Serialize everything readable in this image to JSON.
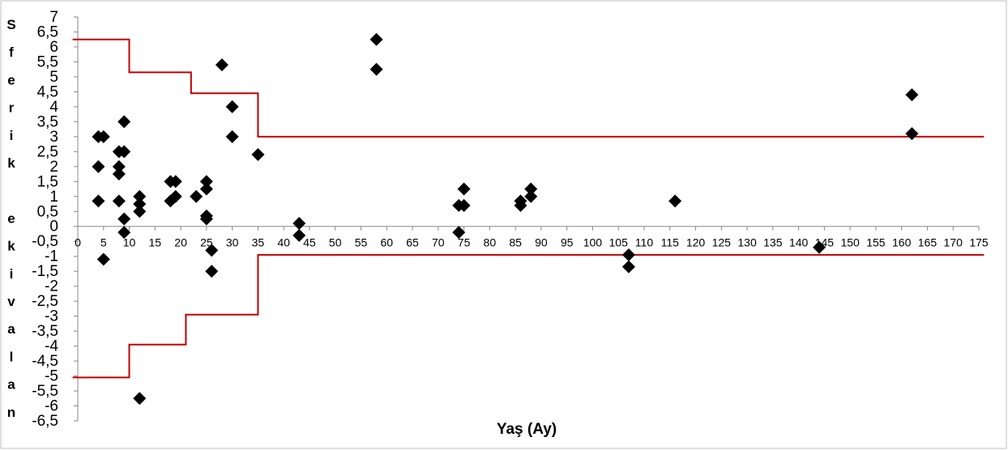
{
  "chart_data": {
    "type": "scatter",
    "title": "",
    "xlabel": "Yaş (Ay)",
    "ylabel_chars": [
      "S",
      "f",
      "e",
      "r",
      "i",
      "k",
      "",
      "e",
      "k",
      "i",
      "v",
      "a",
      "l",
      "a",
      "n"
    ],
    "xlim": [
      0,
      175
    ],
    "ylim": [
      -6.5,
      7
    ],
    "x_ticks": [
      0,
      5,
      10,
      15,
      20,
      25,
      30,
      35,
      40,
      45,
      50,
      55,
      60,
      65,
      70,
      75,
      80,
      85,
      90,
      95,
      100,
      105,
      110,
      115,
      120,
      125,
      130,
      135,
      140,
      145,
      150,
      155,
      160,
      165,
      170,
      175
    ],
    "y_ticks": [
      "7",
      "6,5",
      "6",
      "5,5",
      "5",
      "4,5",
      "4",
      "3,5",
      "3",
      "2,5",
      "2",
      "1,5",
      "1",
      "0,5",
      "0",
      "-0,5",
      "-1",
      "-1,5",
      "-2",
      "-2,5",
      "-3",
      "-3,5",
      "-4",
      "-4,5",
      "-5",
      "-5,5",
      "-6",
      "-6,5"
    ],
    "y_tick_values": [
      7,
      6.5,
      6,
      5.5,
      5,
      4.5,
      4,
      3.5,
      3,
      2.5,
      2,
      1.5,
      1,
      0.5,
      0,
      -0.5,
      -1,
      -1.5,
      -2,
      -2.5,
      -3,
      -3.5,
      -4,
      -4.5,
      -5,
      -5.5,
      -6,
      -6.5
    ],
    "grid": false,
    "legend": "none",
    "marker": "diamond",
    "marker_color": "#000000",
    "line_color": "#c00000",
    "points": [
      {
        "x": 4,
        "y": 3
      },
      {
        "x": 5,
        "y": 3
      },
      {
        "x": 4,
        "y": 2
      },
      {
        "x": 4,
        "y": 0.85
      },
      {
        "x": 5,
        "y": -1.1
      },
      {
        "x": 8,
        "y": 2.5
      },
      {
        "x": 8,
        "y": 2
      },
      {
        "x": 8,
        "y": 1.75
      },
      {
        "x": 8,
        "y": 0.85
      },
      {
        "x": 9,
        "y": 3.5
      },
      {
        "x": 9,
        "y": 2.5
      },
      {
        "x": 9,
        "y": 0.25
      },
      {
        "x": 9,
        "y": -0.2
      },
      {
        "x": 12,
        "y": 1
      },
      {
        "x": 12,
        "y": 0.75
      },
      {
        "x": 12,
        "y": 0.5
      },
      {
        "x": 12,
        "y": -5.75
      },
      {
        "x": 18,
        "y": 1.5
      },
      {
        "x": 18,
        "y": 0.85
      },
      {
        "x": 19,
        "y": 1.5
      },
      {
        "x": 19,
        "y": 1
      },
      {
        "x": 23,
        "y": 1
      },
      {
        "x": 25,
        "y": 1.5
      },
      {
        "x": 25,
        "y": 1.25
      },
      {
        "x": 25,
        "y": 0.35
      },
      {
        "x": 25,
        "y": 0.25
      },
      {
        "x": 26,
        "y": -0.8
      },
      {
        "x": 26,
        "y": -1.5
      },
      {
        "x": 28,
        "y": 5.4
      },
      {
        "x": 30,
        "y": 4
      },
      {
        "x": 30,
        "y": 3
      },
      {
        "x": 35,
        "y": 2.4
      },
      {
        "x": 43,
        "y": 0.1
      },
      {
        "x": 43,
        "y": -0.3
      },
      {
        "x": 58,
        "y": 6.25
      },
      {
        "x": 58,
        "y": 5.25
      },
      {
        "x": 74,
        "y": 0.7
      },
      {
        "x": 74,
        "y": -0.2
      },
      {
        "x": 75,
        "y": 1.25
      },
      {
        "x": 75,
        "y": 0.7
      },
      {
        "x": 86,
        "y": 0.85
      },
      {
        "x": 86,
        "y": 0.7
      },
      {
        "x": 88,
        "y": 1.25
      },
      {
        "x": 88,
        "y": 1
      },
      {
        "x": 107,
        "y": -0.95
      },
      {
        "x": 107,
        "y": -1.35
      },
      {
        "x": 116,
        "y": 0.85
      },
      {
        "x": 144,
        "y": -0.7
      },
      {
        "x": 162,
        "y": 4.4
      },
      {
        "x": 162,
        "y": 3.1
      }
    ],
    "upper_limit": {
      "x": [
        -1,
        10,
        10,
        22,
        22,
        35,
        35,
        176
      ],
      "y": [
        6.25,
        6.25,
        5.15,
        5.15,
        4.45,
        4.45,
        3,
        3
      ]
    },
    "lower_limit": {
      "x": [
        -1,
        10,
        10,
        21,
        21,
        35,
        35,
        176
      ],
      "y": [
        -5.05,
        -5.05,
        -3.95,
        -3.95,
        -2.95,
        -2.95,
        -0.95,
        -0.95
      ]
    }
  }
}
